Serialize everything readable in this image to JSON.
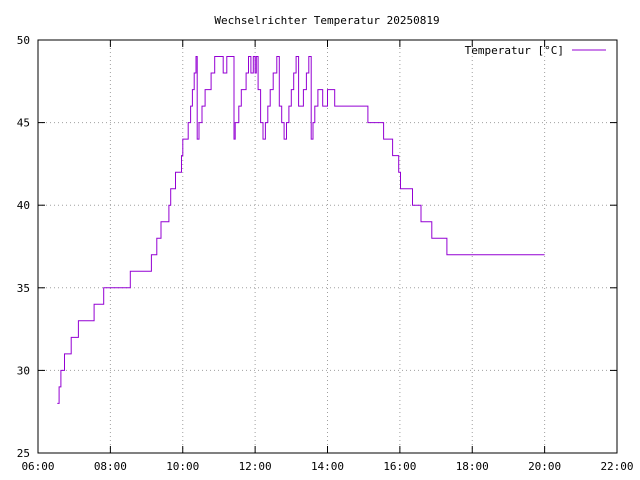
{
  "chart_data": {
    "type": "line",
    "title": "Wechselrichter Temperatur 20250819",
    "xlabel": "",
    "ylabel": "",
    "xlim": [
      "06:00",
      "22:00"
    ],
    "ylim": [
      25,
      50
    ],
    "x_ticks": [
      "06:00",
      "08:00",
      "10:00",
      "12:00",
      "14:00",
      "16:00",
      "18:00",
      "20:00",
      "22:00"
    ],
    "y_ticks": [
      "25",
      "30",
      "35",
      "40",
      "45",
      "50"
    ],
    "grid": true,
    "legend_position": "top-right",
    "colors": {
      "series": "#9400d3",
      "grid": "#a0a0a0",
      "axes": "#000000"
    },
    "series": [
      {
        "name": "Temperatur [°C]",
        "step": true,
        "x": [
          "06:32",
          "06:35",
          "06:38",
          "06:44",
          "06:55",
          "07:07",
          "07:33",
          "07:49",
          "08:33",
          "09:08",
          "09:17",
          "09:24",
          "09:37",
          "09:40",
          "09:48",
          "09:58",
          "10:00",
          "10:09",
          "10:13",
          "10:16",
          "10:19",
          "10:22",
          "10:24",
          "10:27",
          "10:32",
          "10:37",
          "10:47",
          "10:53",
          "11:07",
          "11:13",
          "11:25",
          "11:27",
          "11:33",
          "11:37",
          "11:45",
          "11:49",
          "11:53",
          "11:57",
          "12:00",
          "12:02",
          "12:05",
          "12:09",
          "12:13",
          "12:17",
          "12:21",
          "12:25",
          "12:30",
          "12:36",
          "12:40",
          "12:44",
          "12:48",
          "12:52",
          "12:56",
          "13:00",
          "13:04",
          "13:08",
          "13:12",
          "13:20",
          "13:25",
          "13:29",
          "13:33",
          "13:36",
          "13:39",
          "13:44",
          "13:52",
          "14:00",
          "14:12",
          "15:07",
          "15:33",
          "15:48",
          "15:58",
          "16:01",
          "16:21",
          "16:35",
          "16:53",
          "17:18",
          "17:32",
          "18:33",
          "19:48",
          "20:00"
        ],
        "values": [
          28,
          29,
          30,
          31,
          32,
          33,
          34,
          35,
          36,
          37,
          38,
          39,
          40,
          41,
          42,
          43,
          44,
          45,
          46,
          47,
          48,
          49,
          44,
          45,
          46,
          47,
          48,
          49,
          48,
          49,
          44,
          45,
          46,
          47,
          48,
          49,
          48,
          49,
          48,
          49,
          47,
          45,
          44,
          45,
          46,
          47,
          48,
          49,
          46,
          45,
          44,
          45,
          46,
          47,
          48,
          49,
          46,
          47,
          48,
          49,
          44,
          45,
          46,
          47,
          46,
          47,
          46,
          45,
          44,
          43,
          42,
          41,
          40,
          39,
          38,
          37,
          37,
          37,
          37,
          37
        ]
      }
    ]
  }
}
